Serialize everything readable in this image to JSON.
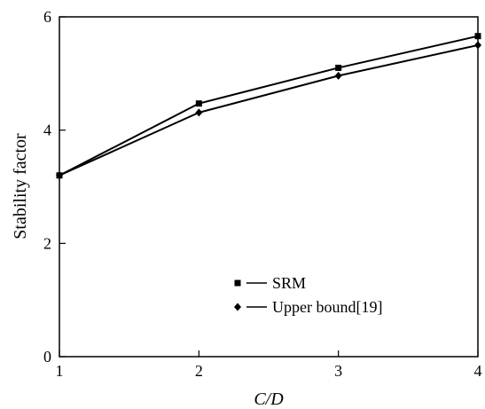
{
  "chart_data": {
    "type": "line",
    "xlabel": "C/D",
    "ylabel": "Stability factor",
    "xlim": [
      1,
      4
    ],
    "ylim": [
      0,
      6
    ],
    "x_ticks": [
      1,
      2,
      3,
      4
    ],
    "y_ticks": [
      0,
      2,
      4,
      6
    ],
    "grid": false,
    "legend_position": "lower-right",
    "series": [
      {
        "name": "SRM",
        "marker": "square",
        "color": "#000000",
        "x": [
          1,
          2,
          3,
          4
        ],
        "y": [
          3.2,
          4.47,
          5.1,
          5.66
        ]
      },
      {
        "name": "Upper bound[19]",
        "marker": "diamond",
        "color": "#000000",
        "x": [
          1,
          2,
          3,
          4
        ],
        "y": [
          3.2,
          4.31,
          4.96,
          5.5
        ]
      }
    ]
  }
}
